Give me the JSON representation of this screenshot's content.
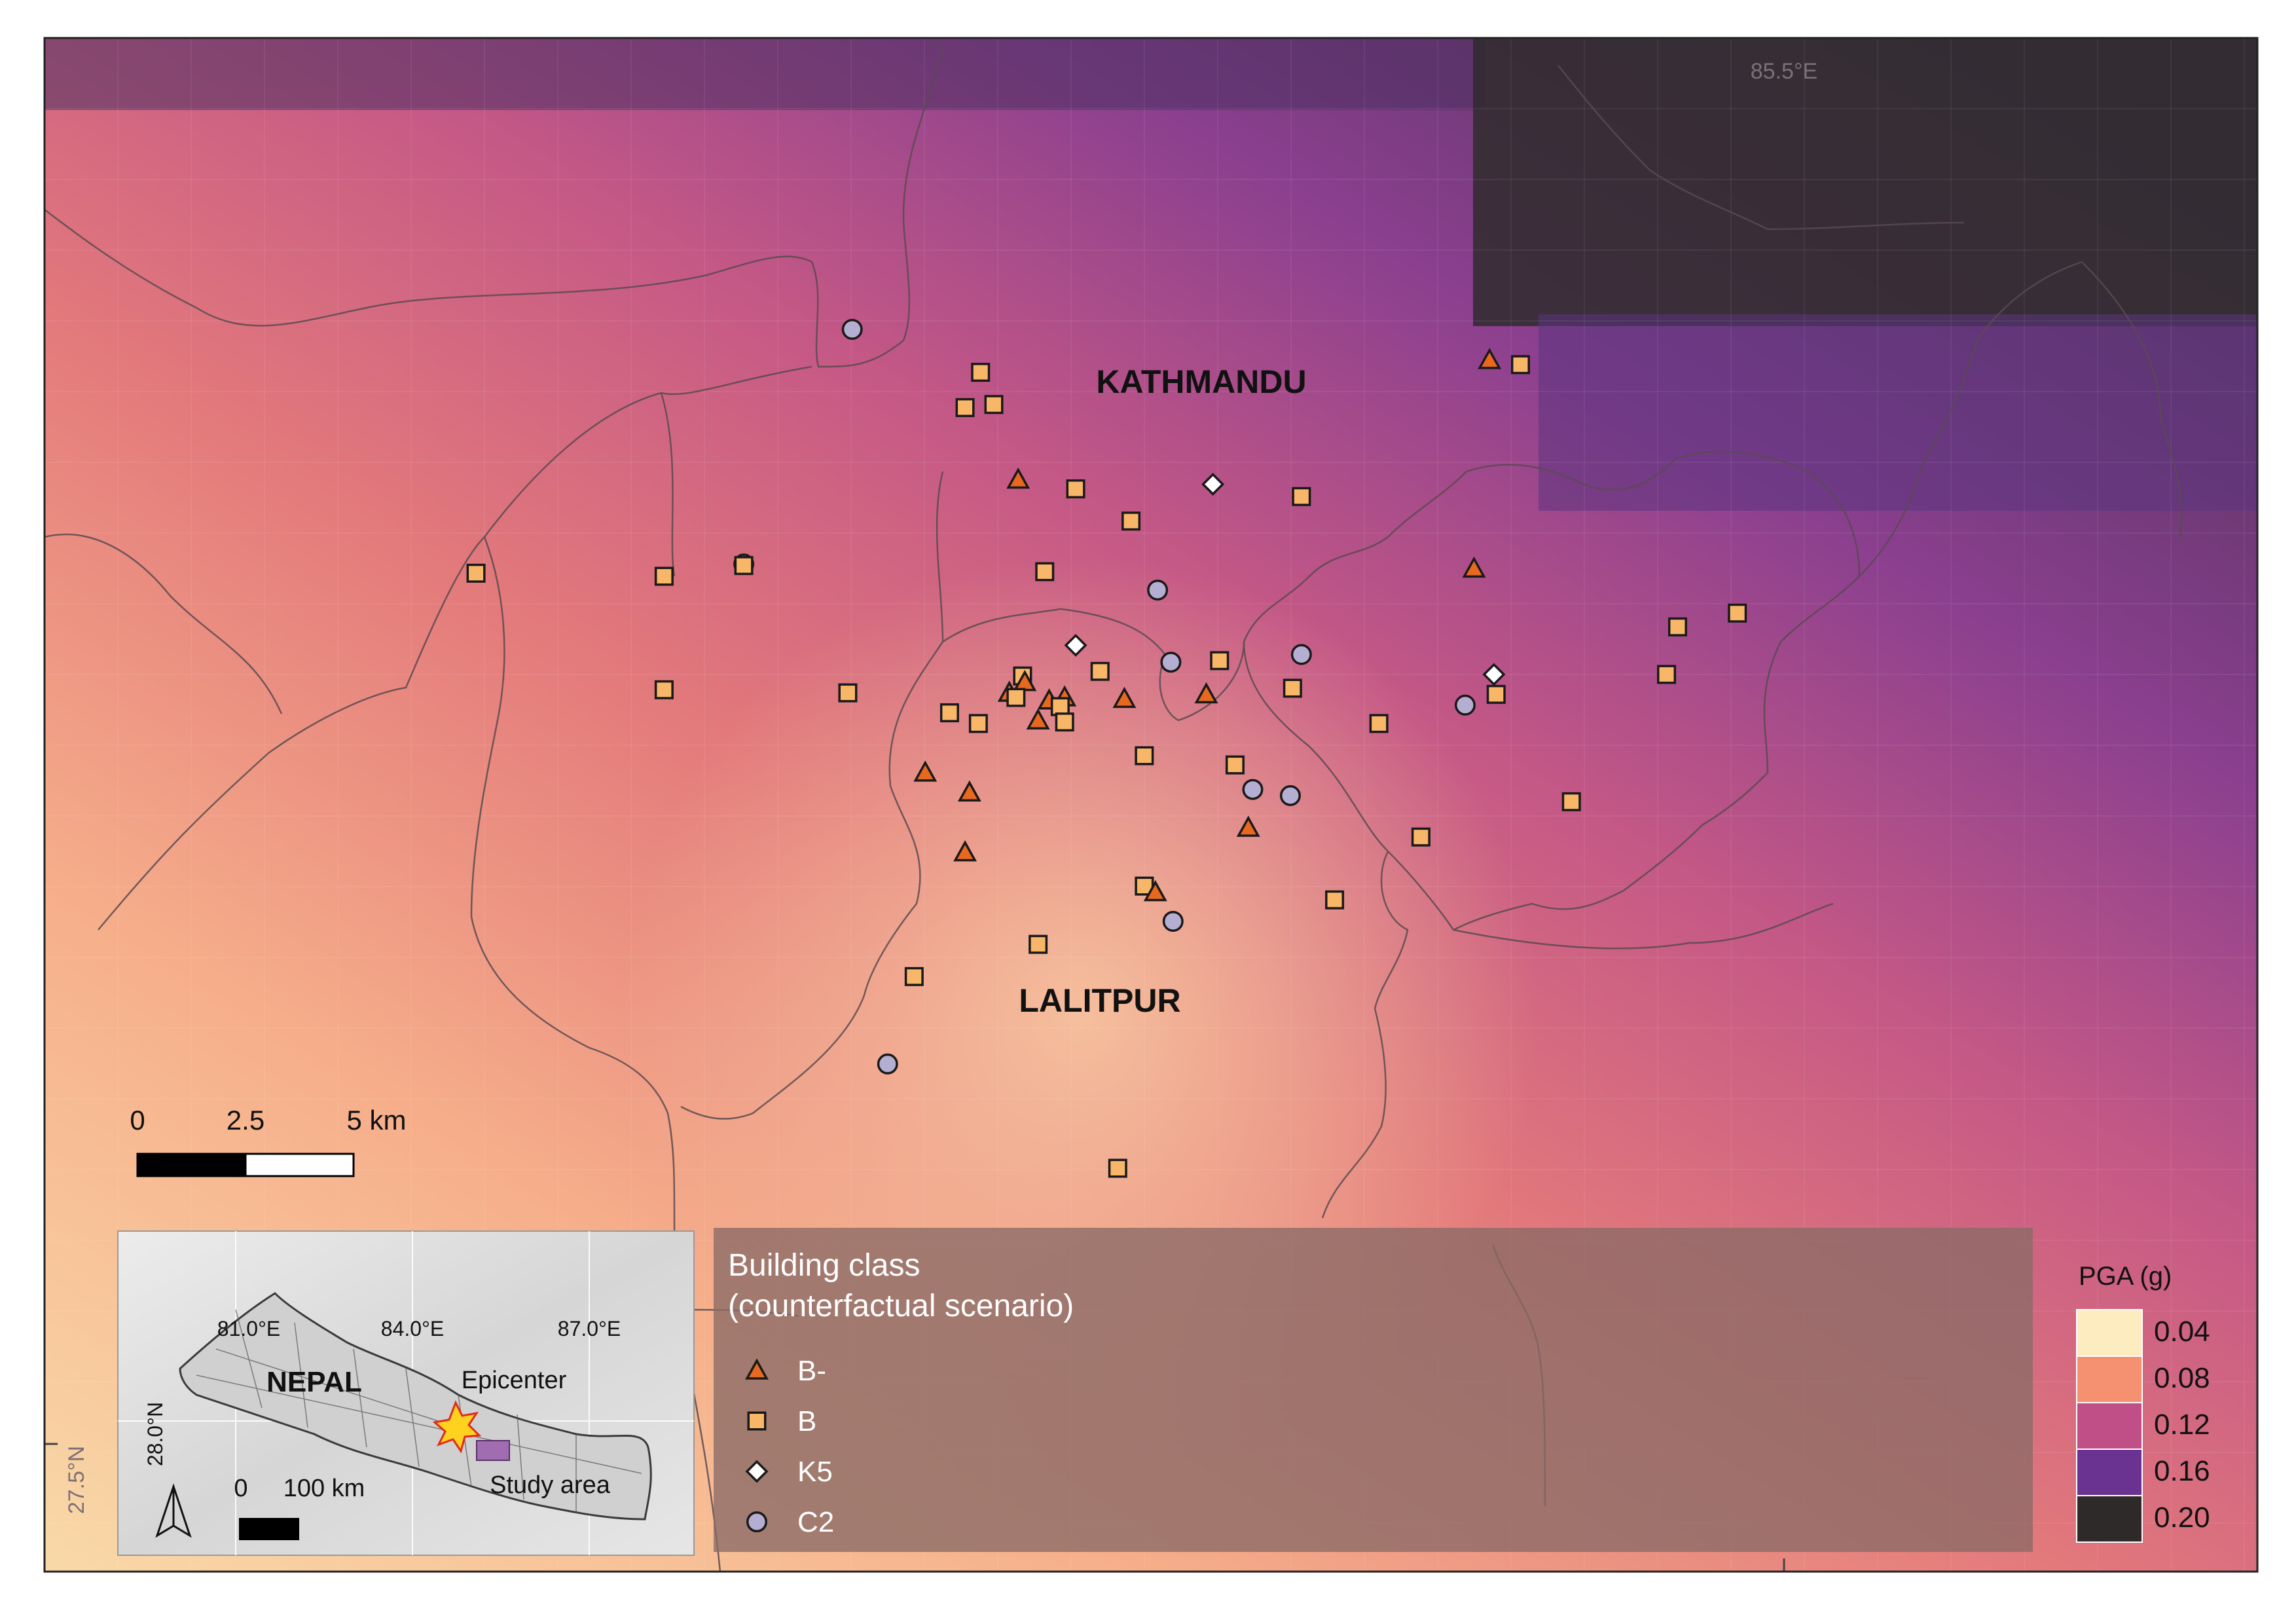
{
  "map": {
    "graticule": {
      "top_lon_label": "85.5°E",
      "left_lat_label": "27.5°N"
    },
    "places": [
      {
        "name": "KATHMANDU"
      },
      {
        "name": "LALITPUR"
      }
    ],
    "pga_grid_hint": "raster shading from low (south-west) to high (north-east)",
    "buildings": [
      {
        "cls": "C2",
        "lon": 0.365,
        "lat": 0.81
      },
      {
        "cls": "B",
        "lon": 0.423,
        "lat": 0.782
      },
      {
        "cls": "B",
        "lon": 0.416,
        "lat": 0.759
      },
      {
        "cls": "B",
        "lon": 0.429,
        "lat": 0.761
      },
      {
        "cls": "B-",
        "lon": 0.44,
        "lat": 0.712
      },
      {
        "cls": "B",
        "lon": 0.466,
        "lat": 0.706
      },
      {
        "cls": "K5",
        "lon": 0.528,
        "lat": 0.709
      },
      {
        "cls": "B",
        "lon": 0.568,
        "lat": 0.701
      },
      {
        "cls": "B",
        "lon": 0.491,
        "lat": 0.685
      },
      {
        "cls": "B-",
        "lon": 0.653,
        "lat": 0.79
      },
      {
        "cls": "B",
        "lon": 0.667,
        "lat": 0.787
      },
      {
        "cls": "B",
        "lon": 0.195,
        "lat": 0.651
      },
      {
        "cls": "B",
        "lon": 0.28,
        "lat": 0.649
      },
      {
        "cls": "C2",
        "lon": 0.316,
        "lat": 0.657
      },
      {
        "cls": "B",
        "lon": 0.316,
        "lat": 0.656
      },
      {
        "cls": "B",
        "lon": 0.452,
        "lat": 0.652
      },
      {
        "cls": "C2",
        "lon": 0.503,
        "lat": 0.64
      },
      {
        "cls": "B-",
        "lon": 0.646,
        "lat": 0.654
      },
      {
        "cls": "B",
        "lon": 0.738,
        "lat": 0.616
      },
      {
        "cls": "B",
        "lon": 0.765,
        "lat": 0.625
      },
      {
        "cls": "K5",
        "lon": 0.466,
        "lat": 0.604
      },
      {
        "cls": "C2",
        "lon": 0.509,
        "lat": 0.593
      },
      {
        "cls": "B",
        "lon": 0.531,
        "lat": 0.594
      },
      {
        "cls": "C2",
        "lon": 0.568,
        "lat": 0.598
      },
      {
        "cls": "B",
        "lon": 0.477,
        "lat": 0.587
      },
      {
        "cls": "B",
        "lon": 0.442,
        "lat": 0.584
      },
      {
        "cls": "B-",
        "lon": 0.443,
        "lat": 0.58
      },
      {
        "cls": "B-",
        "lon": 0.436,
        "lat": 0.573
      },
      {
        "cls": "B",
        "lon": 0.439,
        "lat": 0.57
      },
      {
        "cls": "B-",
        "lon": 0.454,
        "lat": 0.568
      },
      {
        "cls": "B-",
        "lon": 0.461,
        "lat": 0.57
      },
      {
        "cls": "B",
        "lon": 0.459,
        "lat": 0.564
      },
      {
        "cls": "B-",
        "lon": 0.488,
        "lat": 0.569
      },
      {
        "cls": "B-",
        "lon": 0.525,
        "lat": 0.572
      },
      {
        "cls": "B",
        "lon": 0.564,
        "lat": 0.576
      },
      {
        "cls": "K5",
        "lon": 0.655,
        "lat": 0.585
      },
      {
        "cls": "B",
        "lon": 0.656,
        "lat": 0.572
      },
      {
        "cls": "C2",
        "lon": 0.642,
        "lat": 0.565
      },
      {
        "cls": "B",
        "lon": 0.733,
        "lat": 0.585
      },
      {
        "cls": "B",
        "lon": 0.28,
        "lat": 0.575
      },
      {
        "cls": "B",
        "lon": 0.363,
        "lat": 0.573
      },
      {
        "cls": "B",
        "lon": 0.409,
        "lat": 0.56
      },
      {
        "cls": "B",
        "lon": 0.422,
        "lat": 0.553
      },
      {
        "cls": "B-",
        "lon": 0.449,
        "lat": 0.555
      },
      {
        "cls": "B",
        "lon": 0.461,
        "lat": 0.554
      },
      {
        "cls": "B",
        "lon": 0.603,
        "lat": 0.553
      },
      {
        "cls": "B",
        "lon": 0.497,
        "lat": 0.532
      },
      {
        "cls": "B",
        "lon": 0.538,
        "lat": 0.526
      },
      {
        "cls": "B-",
        "lon": 0.398,
        "lat": 0.521
      },
      {
        "cls": "B-",
        "lon": 0.418,
        "lat": 0.508
      },
      {
        "cls": "C2",
        "lon": 0.546,
        "lat": 0.51
      },
      {
        "cls": "C2",
        "lon": 0.563,
        "lat": 0.506
      },
      {
        "cls": "B",
        "lon": 0.69,
        "lat": 0.502
      },
      {
        "cls": "B-",
        "lon": 0.544,
        "lat": 0.485
      },
      {
        "cls": "B",
        "lon": 0.622,
        "lat": 0.479
      },
      {
        "cls": "B-",
        "lon": 0.416,
        "lat": 0.469
      },
      {
        "cls": "B",
        "lon": 0.497,
        "lat": 0.447
      },
      {
        "cls": "B-",
        "lon": 0.502,
        "lat": 0.443
      },
      {
        "cls": "C2",
        "lon": 0.51,
        "lat": 0.424
      },
      {
        "cls": "B",
        "lon": 0.583,
        "lat": 0.438
      },
      {
        "cls": "B",
        "lon": 0.449,
        "lat": 0.409
      },
      {
        "cls": "B",
        "lon": 0.393,
        "lat": 0.388
      },
      {
        "cls": "C2",
        "lon": 0.381,
        "lat": 0.331
      },
      {
        "cls": "B",
        "lon": 0.485,
        "lat": 0.263
      }
    ]
  },
  "scalebar": {
    "labels": [
      "0",
      "2.5",
      "5 km"
    ]
  },
  "inset": {
    "lon_labels": [
      "81.0°E",
      "84.0°E",
      "87.0°E"
    ],
    "lat_label": "28.0°N",
    "country": "NEPAL",
    "epicenter_label": "Epicenter",
    "study_area_label": "Study area",
    "scale_labels": [
      "0",
      "100 km"
    ]
  },
  "legend_building": {
    "title_line1": "Building class",
    "title_line2": "(counterfactual scenario)",
    "items": [
      {
        "code": "B-",
        "label": "B-",
        "shape": "triangle",
        "fill": "#e8681e"
      },
      {
        "code": "B",
        "label": "B",
        "shape": "square",
        "fill": "#f8b768"
      },
      {
        "code": "K5",
        "label": "K5",
        "shape": "diamond",
        "fill": "#ffffff"
      },
      {
        "code": "C2",
        "label": "C2",
        "shape": "circle",
        "fill": "#b4afd2"
      }
    ]
  },
  "legend_pga": {
    "title": "PGA (g)",
    "items": [
      {
        "label": "0.04",
        "color": "#fcecc0"
      },
      {
        "label": "0.08",
        "color": "#f59070"
      },
      {
        "label": "0.12",
        "color": "#bf4f86"
      },
      {
        "label": "0.16",
        "color": "#6b3391"
      },
      {
        "label": "0.20",
        "color": "#2f2a2a"
      }
    ]
  }
}
